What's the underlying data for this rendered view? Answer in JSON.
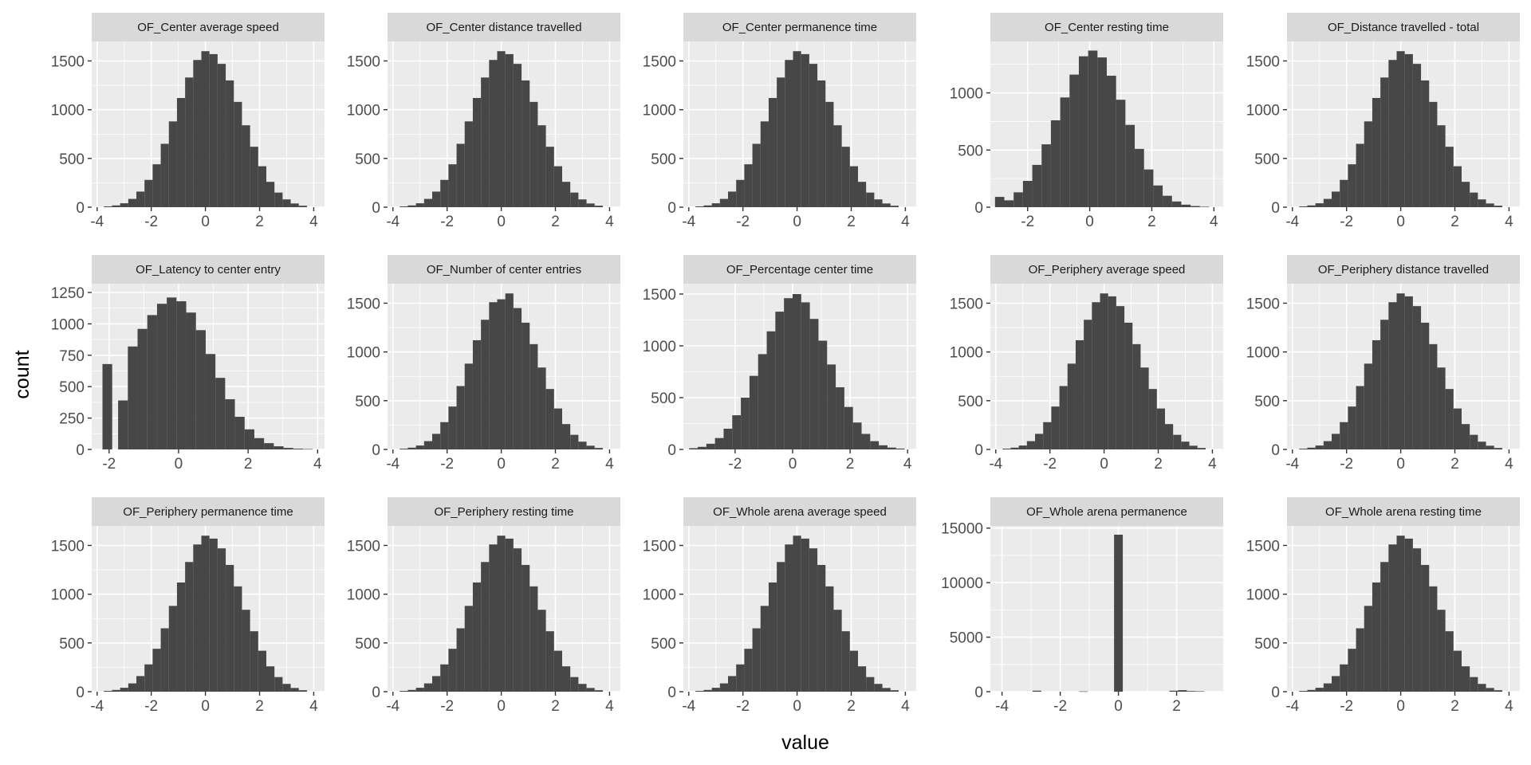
{
  "chart_data": {
    "type": "bar",
    "layout": "facet grid, 3 rows x 5 columns",
    "xlabel": "value",
    "ylabel": "count",
    "colors": {
      "bar": "#474747",
      "panel": "#ebebeb",
      "strip": "#d9d9d9",
      "grid": "#ffffff"
    },
    "grid": true,
    "panels": [
      {
        "title": "OF_Center average speed",
        "xlim": [
          -4.2,
          4.4
        ],
        "ylim": [
          0,
          1700
        ],
        "xticks": [
          -4,
          -2,
          0,
          2,
          4
        ],
        "yticks": [
          0,
          500,
          1000,
          1500
        ],
        "x": [
          -3.6,
          -3.3,
          -3.0,
          -2.7,
          -2.4,
          -2.1,
          -1.8,
          -1.5,
          -1.2,
          -0.9,
          -0.6,
          -0.3,
          0.0,
          0.3,
          0.6,
          0.9,
          1.2,
          1.5,
          1.8,
          2.1,
          2.4,
          2.7,
          3.0,
          3.3,
          3.6
        ],
        "counts": [
          8,
          18,
          40,
          85,
          160,
          280,
          440,
          650,
          880,
          1120,
          1330,
          1510,
          1600,
          1570,
          1470,
          1300,
          1080,
          840,
          620,
          420,
          260,
          150,
          80,
          38,
          15
        ]
      },
      {
        "title": "OF_Center distance travelled",
        "xlim": [
          -4.2,
          4.4
        ],
        "ylim": [
          0,
          1700
        ],
        "xticks": [
          -4,
          -2,
          0,
          2,
          4
        ],
        "yticks": [
          0,
          500,
          1000,
          1500
        ],
        "x": [
          -3.6,
          -3.3,
          -3.0,
          -2.7,
          -2.4,
          -2.1,
          -1.8,
          -1.5,
          -1.2,
          -0.9,
          -0.6,
          -0.3,
          0.0,
          0.3,
          0.6,
          0.9,
          1.2,
          1.5,
          1.8,
          2.1,
          2.4,
          2.7,
          3.0,
          3.3,
          3.6
        ],
        "counts": [
          8,
          18,
          40,
          85,
          160,
          280,
          440,
          650,
          880,
          1120,
          1330,
          1510,
          1600,
          1570,
          1470,
          1300,
          1080,
          840,
          620,
          420,
          260,
          150,
          80,
          38,
          15
        ]
      },
      {
        "title": "OF_Center permanence time",
        "xlim": [
          -4.2,
          4.4
        ],
        "ylim": [
          0,
          1700
        ],
        "xticks": [
          -4,
          -2,
          0,
          2,
          4
        ],
        "yticks": [
          0,
          500,
          1000,
          1500
        ],
        "x": [
          -3.6,
          -3.3,
          -3.0,
          -2.7,
          -2.4,
          -2.1,
          -1.8,
          -1.5,
          -1.2,
          -0.9,
          -0.6,
          -0.3,
          0.0,
          0.3,
          0.6,
          0.9,
          1.2,
          1.5,
          1.8,
          2.1,
          2.4,
          2.7,
          3.0,
          3.3,
          3.6
        ],
        "counts": [
          8,
          18,
          40,
          85,
          160,
          280,
          440,
          650,
          880,
          1120,
          1330,
          1510,
          1600,
          1570,
          1470,
          1300,
          1080,
          840,
          620,
          420,
          260,
          150,
          80,
          38,
          15
        ]
      },
      {
        "title": "OF_Center resting time",
        "xlim": [
          -3.2,
          4.3
        ],
        "ylim": [
          0,
          1450
        ],
        "xticks": [
          -2,
          0,
          2,
          4
        ],
        "yticks": [
          0,
          500,
          1000
        ],
        "x": [
          -2.9,
          -2.6,
          -2.3,
          -2.0,
          -1.7,
          -1.4,
          -1.1,
          -0.8,
          -0.5,
          -0.2,
          0.1,
          0.4,
          0.7,
          1.0,
          1.3,
          1.6,
          1.9,
          2.2,
          2.5,
          2.8,
          3.1,
          3.4,
          3.7
        ],
        "counts": [
          90,
          60,
          130,
          230,
          370,
          550,
          760,
          960,
          1160,
          1320,
          1370,
          1310,
          1150,
          940,
          720,
          510,
          330,
          190,
          100,
          50,
          22,
          10,
          4
        ]
      },
      {
        "title": "OF_Distance travelled - total",
        "xlim": [
          -4.2,
          4.4
        ],
        "ylim": [
          0,
          1700
        ],
        "xticks": [
          -4,
          -2,
          0,
          2,
          4
        ],
        "yticks": [
          0,
          500,
          1000,
          1500
        ],
        "x": [
          -3.6,
          -3.3,
          -3.0,
          -2.7,
          -2.4,
          -2.1,
          -1.8,
          -1.5,
          -1.2,
          -0.9,
          -0.6,
          -0.3,
          0.0,
          0.3,
          0.6,
          0.9,
          1.2,
          1.5,
          1.8,
          2.1,
          2.4,
          2.7,
          3.0,
          3.3,
          3.6
        ],
        "counts": [
          8,
          18,
          40,
          85,
          160,
          280,
          440,
          650,
          880,
          1120,
          1330,
          1510,
          1600,
          1570,
          1470,
          1300,
          1080,
          840,
          620,
          420,
          260,
          150,
          80,
          38,
          15
        ]
      },
      {
        "title": "OF_Latency to center entry",
        "xlim": [
          -2.5,
          4.2
        ],
        "ylim": [
          0,
          1320
        ],
        "xticks": [
          -2,
          0,
          2,
          4
        ],
        "yticks": [
          0,
          250,
          500,
          750,
          1000,
          1250
        ],
        "x": [
          -2.05,
          -1.6,
          -1.32,
          -1.04,
          -0.76,
          -0.48,
          -0.2,
          0.08,
          0.36,
          0.64,
          0.92,
          1.2,
          1.48,
          1.76,
          2.04,
          2.32,
          2.6,
          2.88,
          3.16,
          3.44,
          3.72
        ],
        "counts": [
          680,
          390,
          820,
          960,
          1070,
          1160,
          1210,
          1180,
          1090,
          950,
          760,
          570,
          400,
          260,
          160,
          90,
          50,
          25,
          12,
          6,
          3
        ]
      },
      {
        "title": "OF_Number of center entries",
        "xlim": [
          -4.2,
          4.4
        ],
        "ylim": [
          0,
          1700
        ],
        "xticks": [
          -4,
          -2,
          0,
          2,
          4
        ],
        "yticks": [
          0,
          500,
          1000,
          1500
        ],
        "x": [
          -3.6,
          -3.3,
          -3.0,
          -2.7,
          -2.4,
          -2.1,
          -1.8,
          -1.5,
          -1.2,
          -0.9,
          -0.6,
          -0.3,
          0.0,
          0.3,
          0.6,
          0.9,
          1.2,
          1.5,
          1.8,
          2.1,
          2.4,
          2.7,
          3.0,
          3.3,
          3.6
        ],
        "counts": [
          8,
          18,
          40,
          85,
          160,
          280,
          440,
          650,
          880,
          1120,
          1330,
          1510,
          1540,
          1600,
          1450,
          1300,
          1080,
          840,
          620,
          420,
          260,
          150,
          80,
          38,
          15
        ]
      },
      {
        "title": "OF_Percentage center time",
        "xlim": [
          -3.8,
          4.3
        ],
        "ylim": [
          0,
          1600
        ],
        "xticks": [
          -2,
          0,
          2,
          4
        ],
        "yticks": [
          0,
          500,
          1000,
          1500
        ],
        "x": [
          -3.45,
          -3.15,
          -2.85,
          -2.55,
          -2.25,
          -1.95,
          -1.65,
          -1.35,
          -1.05,
          -0.75,
          -0.45,
          -0.15,
          0.15,
          0.45,
          0.75,
          1.05,
          1.35,
          1.65,
          1.95,
          2.25,
          2.55,
          2.85,
          3.15,
          3.45,
          3.75
        ],
        "counts": [
          12,
          25,
          55,
          110,
          200,
          330,
          500,
          710,
          920,
          1140,
          1330,
          1460,
          1500,
          1420,
          1260,
          1050,
          820,
          600,
          410,
          260,
          150,
          80,
          40,
          18,
          8
        ]
      },
      {
        "title": "OF_Periphery average speed",
        "xlim": [
          -4.2,
          4.4
        ],
        "ylim": [
          0,
          1700
        ],
        "xticks": [
          -4,
          -2,
          0,
          2,
          4
        ],
        "yticks": [
          0,
          500,
          1000,
          1500
        ],
        "x": [
          -3.6,
          -3.3,
          -3.0,
          -2.7,
          -2.4,
          -2.1,
          -1.8,
          -1.5,
          -1.2,
          -0.9,
          -0.6,
          -0.3,
          0.0,
          0.3,
          0.6,
          0.9,
          1.2,
          1.5,
          1.8,
          2.1,
          2.4,
          2.7,
          3.0,
          3.3,
          3.6
        ],
        "counts": [
          8,
          18,
          40,
          85,
          160,
          280,
          440,
          650,
          880,
          1120,
          1330,
          1510,
          1600,
          1570,
          1470,
          1300,
          1080,
          840,
          620,
          420,
          260,
          150,
          80,
          38,
          15
        ]
      },
      {
        "title": "OF_Periphery distance travelled",
        "xlim": [
          -4.2,
          4.4
        ],
        "ylim": [
          0,
          1700
        ],
        "xticks": [
          -4,
          -2,
          0,
          2,
          4
        ],
        "yticks": [
          0,
          500,
          1000,
          1500
        ],
        "x": [
          -3.6,
          -3.3,
          -3.0,
          -2.7,
          -2.4,
          -2.1,
          -1.8,
          -1.5,
          -1.2,
          -0.9,
          -0.6,
          -0.3,
          0.0,
          0.3,
          0.6,
          0.9,
          1.2,
          1.5,
          1.8,
          2.1,
          2.4,
          2.7,
          3.0,
          3.3,
          3.6
        ],
        "counts": [
          8,
          18,
          40,
          85,
          160,
          280,
          440,
          650,
          880,
          1120,
          1330,
          1510,
          1600,
          1570,
          1470,
          1300,
          1080,
          840,
          620,
          420,
          260,
          150,
          80,
          38,
          15
        ]
      },
      {
        "title": "OF_Periphery permanence time",
        "xlim": [
          -4.2,
          4.4
        ],
        "ylim": [
          0,
          1700
        ],
        "xticks": [
          -4,
          -2,
          0,
          2,
          4
        ],
        "yticks": [
          0,
          500,
          1000,
          1500
        ],
        "x": [
          -3.6,
          -3.3,
          -3.0,
          -2.7,
          -2.4,
          -2.1,
          -1.8,
          -1.5,
          -1.2,
          -0.9,
          -0.6,
          -0.3,
          0.0,
          0.3,
          0.6,
          0.9,
          1.2,
          1.5,
          1.8,
          2.1,
          2.4,
          2.7,
          3.0,
          3.3,
          3.6
        ],
        "counts": [
          8,
          18,
          40,
          85,
          160,
          280,
          440,
          650,
          880,
          1120,
          1330,
          1510,
          1600,
          1570,
          1470,
          1300,
          1080,
          840,
          620,
          420,
          260,
          150,
          80,
          38,
          15
        ]
      },
      {
        "title": "OF_Periphery resting time",
        "xlim": [
          -4.2,
          4.4
        ],
        "ylim": [
          0,
          1700
        ],
        "xticks": [
          -4,
          -2,
          0,
          2,
          4
        ],
        "yticks": [
          0,
          500,
          1000,
          1500
        ],
        "x": [
          -3.6,
          -3.3,
          -3.0,
          -2.7,
          -2.4,
          -2.1,
          -1.8,
          -1.5,
          -1.2,
          -0.9,
          -0.6,
          -0.3,
          0.0,
          0.3,
          0.6,
          0.9,
          1.2,
          1.5,
          1.8,
          2.1,
          2.4,
          2.7,
          3.0,
          3.3,
          3.6
        ],
        "counts": [
          8,
          18,
          40,
          85,
          160,
          280,
          440,
          650,
          880,
          1120,
          1330,
          1510,
          1600,
          1570,
          1470,
          1300,
          1080,
          840,
          620,
          420,
          260,
          150,
          80,
          38,
          15
        ]
      },
      {
        "title": "OF_Whole arena average speed",
        "xlim": [
          -4.2,
          4.4
        ],
        "ylim": [
          0,
          1700
        ],
        "xticks": [
          -4,
          -2,
          0,
          2,
          4
        ],
        "yticks": [
          0,
          500,
          1000,
          1500
        ],
        "x": [
          -3.6,
          -3.3,
          -3.0,
          -2.7,
          -2.4,
          -2.1,
          -1.8,
          -1.5,
          -1.2,
          -0.9,
          -0.6,
          -0.3,
          0.0,
          0.3,
          0.6,
          0.9,
          1.2,
          1.5,
          1.8,
          2.1,
          2.4,
          2.7,
          3.0,
          3.3,
          3.6
        ],
        "counts": [
          8,
          18,
          40,
          85,
          160,
          280,
          440,
          650,
          880,
          1120,
          1330,
          1510,
          1600,
          1570,
          1470,
          1300,
          1080,
          840,
          620,
          420,
          260,
          150,
          80,
          38,
          15
        ]
      },
      {
        "title": "OF_Whole arena permanence",
        "xlim": [
          -4.4,
          3.6
        ],
        "ylim": [
          0,
          15200
        ],
        "xticks": [
          -4,
          -2,
          0,
          2
        ],
        "yticks": [
          0,
          5000,
          10000,
          15000
        ],
        "x": [
          -2.8,
          -1.2,
          0.0,
          1.9,
          2.2,
          2.5,
          2.8
        ],
        "counts": [
          90,
          30,
          14400,
          90,
          140,
          60,
          40
        ]
      },
      {
        "title": "OF_Whole arena resting time",
        "xlim": [
          -4.2,
          4.4
        ],
        "ylim": [
          0,
          1700
        ],
        "xticks": [
          -4,
          -2,
          0,
          2,
          4
        ],
        "yticks": [
          0,
          500,
          1000,
          1500
        ],
        "x": [
          -3.6,
          -3.3,
          -3.0,
          -2.7,
          -2.4,
          -2.1,
          -1.8,
          -1.5,
          -1.2,
          -0.9,
          -0.6,
          -0.3,
          0.0,
          0.3,
          0.6,
          0.9,
          1.2,
          1.5,
          1.8,
          2.1,
          2.4,
          2.7,
          3.0,
          3.3,
          3.6
        ],
        "counts": [
          8,
          18,
          40,
          85,
          160,
          280,
          440,
          650,
          880,
          1120,
          1330,
          1510,
          1600,
          1570,
          1470,
          1300,
          1080,
          840,
          620,
          420,
          260,
          150,
          80,
          38,
          15
        ]
      }
    ]
  }
}
